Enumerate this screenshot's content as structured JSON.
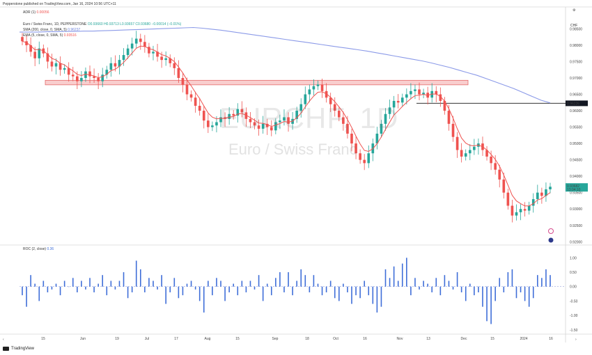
{
  "header": {
    "publisher": "Pepperstone published on TradingView.com, Jan 16, 2024 10:56 UTC+11",
    "adr": "ADR (1)",
    "adr_val": "0.00056",
    "symbol_line": "Euro / Swiss Franc, 1D, PEPPERSTONE",
    "ohlc": "O0.93660 H0.93713 L0.93657 C0.93680 −0.00014 (−0.01%)",
    "sma": "SMA (200, close, 0, SMA, 5)",
    "sma_val": "0.96237",
    "ema": "EMA (5, close, 0, SMA, 5)",
    "ema_val": "0.93516",
    "currency": "CHF",
    "roc": "ROC (2, close)",
    "roc_val": "0.36"
  },
  "watermark": {
    "big": "EURCHF, 1D",
    "sub": "Euro / Swiss Franc"
  },
  "footer": {
    "brand": "TradingView"
  },
  "colors": {
    "up": "#26a69a",
    "down": "#ef5350",
    "sma": "#8b9ae8",
    "ema": "#ef5350",
    "roc": "#3f6ed8",
    "zone": "#f7b9b9"
  },
  "chart_data": [
    {
      "type": "candlestick",
      "title": "Euro / Swiss Franc, 1D, PEPPERSTONE",
      "x_ticks": [
        "15",
        "Jun",
        "19",
        "Jul",
        "17",
        "Aug",
        "15",
        "Sep",
        "18",
        "Oct",
        "16",
        "Nov",
        "13",
        "Dec",
        "15",
        "2024",
        "16"
      ],
      "y_ticks": [
        0.985,
        0.98,
        0.975,
        0.97,
        0.965,
        0.96,
        0.955,
        0.95,
        0.945,
        0.94,
        0.935,
        0.93,
        0.925,
        0.92
      ],
      "ylim": [
        0.919,
        0.987
      ],
      "price_labels": {
        "last": "0.93682",
        "countdown": "13:04:10",
        "level": "0.96226"
      },
      "resistance_zone": [
        0.9679,
        0.9693
      ],
      "horizontal_level": 0.96226,
      "closes": [
        0.9812,
        0.98,
        0.978,
        0.976,
        0.979,
        0.9775,
        0.975,
        0.9735,
        0.9745,
        0.9725,
        0.973,
        0.971,
        0.9705,
        0.969,
        0.97,
        0.972,
        0.9705,
        0.97,
        0.969,
        0.971,
        0.9725,
        0.9745,
        0.9735,
        0.9755,
        0.977,
        0.979,
        0.9805,
        0.982,
        0.981,
        0.9795,
        0.9775,
        0.978,
        0.9765,
        0.9755,
        0.976,
        0.9745,
        0.973,
        0.97,
        0.968,
        0.965,
        0.964,
        0.9615,
        0.96,
        0.957,
        0.955,
        0.9555,
        0.9565,
        0.958,
        0.9575,
        0.959,
        0.9585,
        0.9605,
        0.9595,
        0.9575,
        0.9565,
        0.9555,
        0.9545,
        0.956,
        0.955,
        0.954,
        0.9565,
        0.957,
        0.958,
        0.956,
        0.9575,
        0.96,
        0.962,
        0.965,
        0.9665,
        0.9675,
        0.968,
        0.966,
        0.964,
        0.962,
        0.96,
        0.958,
        0.956,
        0.953,
        0.95,
        0.947,
        0.945,
        0.944,
        0.947,
        0.95,
        0.953,
        0.956,
        0.959,
        0.961,
        0.963,
        0.9625,
        0.964,
        0.965,
        0.966,
        0.9665,
        0.965,
        0.9655,
        0.964,
        0.966,
        0.965,
        0.963,
        0.96,
        0.956,
        0.952,
        0.948,
        0.946,
        0.947,
        0.948,
        0.949,
        0.95,
        0.948,
        0.946,
        0.944,
        0.942,
        0.939,
        0.935,
        0.931,
        0.928,
        0.929,
        0.93,
        0.9295,
        0.931,
        0.933,
        0.935,
        0.934,
        0.936,
        0.9368
      ],
      "sma200": [
        0.984,
        0.984,
        0.984,
        0.9841,
        0.9841,
        0.9842,
        0.9842,
        0.9843,
        0.9843,
        0.9844,
        0.9845,
        0.9846,
        0.9847,
        0.9848,
        0.9849,
        0.985,
        0.9851,
        0.9852,
        0.9853,
        0.9854,
        0.9852,
        0.9849,
        0.9846,
        0.9842,
        0.9838,
        0.9834,
        0.983,
        0.9826,
        0.9822,
        0.9818,
        0.9814,
        0.981,
        0.9806,
        0.9802,
        0.9798,
        0.9794,
        0.979,
        0.9786,
        0.9782,
        0.9777,
        0.9772,
        0.9767,
        0.9762,
        0.9757,
        0.9752,
        0.9746,
        0.9739,
        0.9732,
        0.9724,
        0.9716,
        0.9708,
        0.9698,
        0.9688,
        0.9678,
        0.9668,
        0.9656,
        0.9644,
        0.9632,
        0.9624
      ]
    },
    {
      "type": "bar",
      "title": "ROC (2, close)",
      "y_ticks": [
        1.0,
        0.5,
        0.0,
        -0.5,
        -1.0,
        -1.5
      ],
      "ylim": [
        -1.65,
        1.25
      ],
      "values": [
        -0.3,
        -0.7,
        0.4,
        0.1,
        -0.5,
        0.2,
        -0.2,
        -0.1,
        0.1,
        -0.3,
        0.2,
        0.0,
        0.3,
        -0.2,
        0.2,
        -0.1,
        0.3,
        -0.2,
        0.1,
        0.4,
        -0.3,
        0.2,
        -0.1,
        0.2,
        0.5,
        -0.4,
        -0.2,
        0.9,
        0.6,
        -0.2,
        0.3,
        0.2,
        -0.1,
        0.4,
        -0.6,
        -0.2,
        0.3,
        -0.4,
        -0.3,
        0.1,
        0.2,
        -0.1,
        -0.5,
        -0.9,
        0.2,
        -0.3,
        0.3,
        0.2,
        -0.5,
        -0.2,
        0.1,
        -0.3,
        0.2,
        -0.2,
        0.2,
        -0.1,
        0.4,
        -0.5,
        0.1,
        -0.3,
        0.3,
        0.5,
        -0.2,
        0.5,
        -0.3,
        0.2,
        0.6,
        0.4,
        -0.2,
        0.4,
        0.1,
        -0.3,
        -0.2,
        0.2,
        -0.4,
        -0.5,
        0.1,
        -0.2,
        -0.6,
        -0.3,
        -0.4,
        0.2,
        -0.3,
        -0.6,
        -0.9,
        -0.7,
        0.6,
        0.3,
        0.7,
        0.2,
        0.8,
        1.0,
        -0.3,
        0.3,
        -0.1,
        0.2,
        0.1,
        -0.2,
        0.3,
        -0.3,
        0.4,
        0.2,
        -0.1,
        0.5,
        -0.2,
        -0.5,
        0.1,
        -0.3,
        -0.2,
        -0.7,
        -1.2,
        -1.3,
        -0.5,
        0.3,
        -0.2,
        0.5,
        0.6,
        -0.4,
        -0.2,
        -0.5,
        -0.7,
        -0.4,
        0.4,
        0.3,
        0.6,
        0.4
      ]
    }
  ]
}
